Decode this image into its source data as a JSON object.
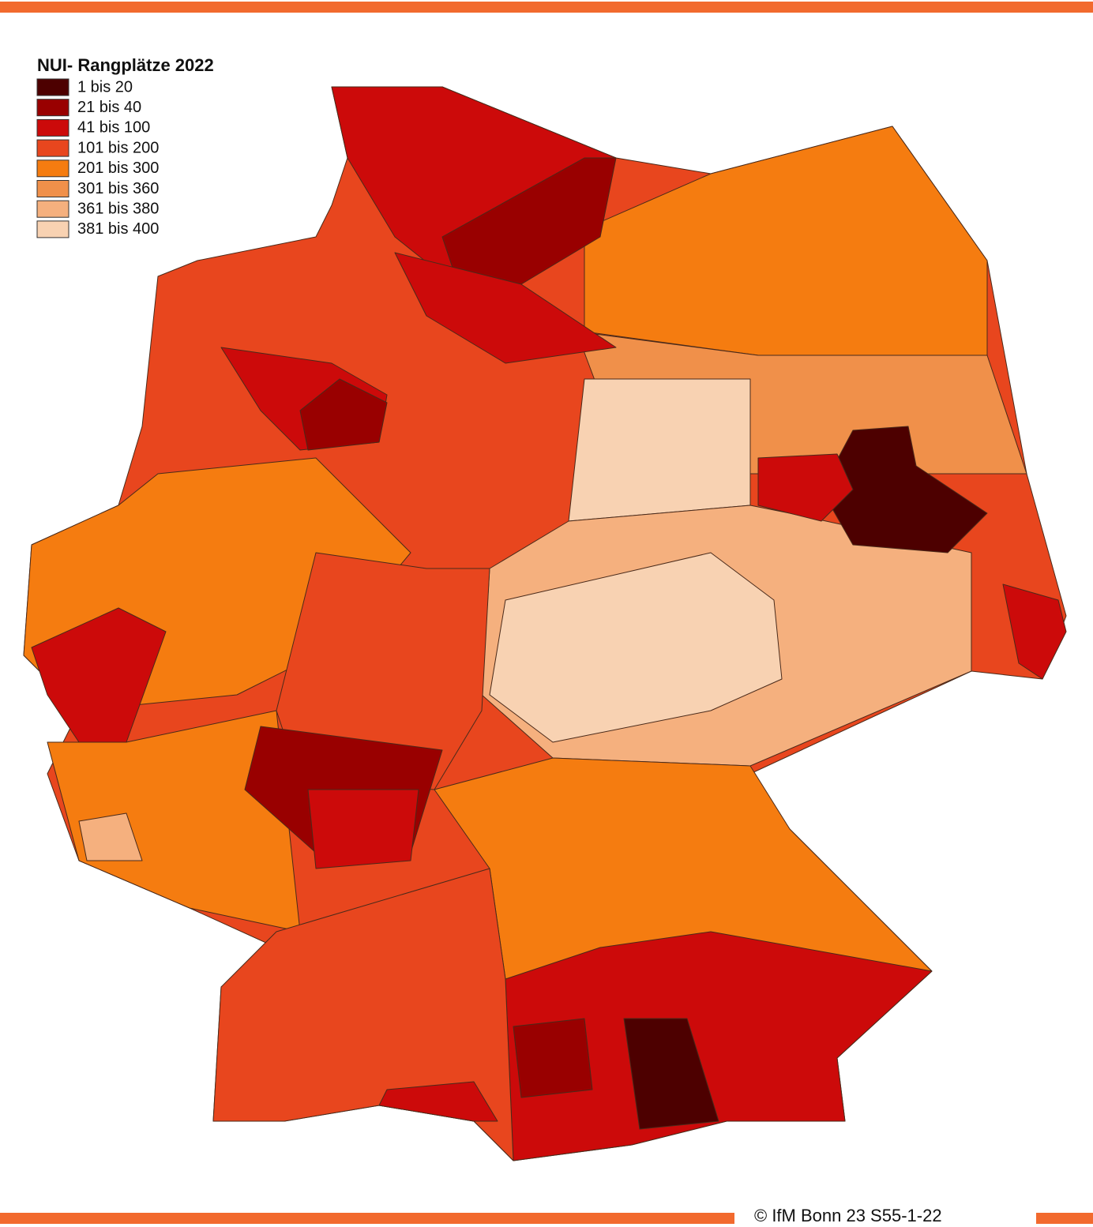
{
  "legend": {
    "title": "NUI- Rangplätze 2022",
    "items": [
      {
        "label": "1 bis 20",
        "color": "#4d0000"
      },
      {
        "label": "21 bis 40",
        "color": "#990000"
      },
      {
        "label": "41 bis 100",
        "color": "#cc0a0a"
      },
      {
        "label": "101 bis 200",
        "color": "#e8461e"
      },
      {
        "label": "201 bis 300",
        "color": "#f57c10"
      },
      {
        "label": "301 bis 360",
        "color": "#f0904a"
      },
      {
        "label": "361 bis 380",
        "color": "#f5b07e"
      },
      {
        "label": "381 bis 400",
        "color": "#f8d2b2"
      }
    ]
  },
  "footer": {
    "copyright": "© IfM  Bonn 23 S55-1-22"
  }
}
